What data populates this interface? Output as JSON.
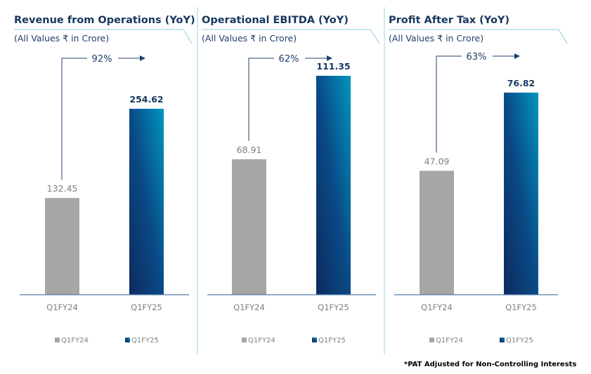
{
  "colors": {
    "prev": "#a6a6a6",
    "curr_dark": "#0d2a5e",
    "curr_light": "#0096c0",
    "title": "#17375e",
    "divider": "#9fd3e3"
  },
  "chart_data": [
    {
      "type": "bar",
      "title": "Revenue from Operations (YoY)",
      "subtitle": "(All Values ₹ in Crore)",
      "categories": [
        "Q1FY24",
        "Q1FY25"
      ],
      "values": [
        132.45,
        254.62
      ],
      "value_labels": [
        "132.45",
        "254.62"
      ],
      "growth_label": "92%",
      "legend": [
        "Q1FY24",
        "Q1FY25"
      ],
      "legend_placement": "bottom",
      "grid": false
    },
    {
      "type": "bar",
      "title": "Operational EBITDA (YoY)",
      "subtitle": "(All Values ₹ in Crore)",
      "categories": [
        "Q1FY24",
        "Q1FY25"
      ],
      "values": [
        68.91,
        111.35
      ],
      "value_labels": [
        "68.91",
        "111.35"
      ],
      "growth_label": "62%",
      "legend": [
        "Q1FY24",
        "Q1FY25"
      ],
      "legend_placement": "bottom",
      "grid": false
    },
    {
      "type": "bar",
      "title": "Profit After Tax (YoY)",
      "subtitle": "(All Values ₹ in Crore)",
      "categories": [
        "Q1FY24",
        "Q1FY25"
      ],
      "values": [
        47.09,
        76.82
      ],
      "value_labels": [
        "47.09",
        "76.82"
      ],
      "growth_label": "63%",
      "legend": [
        "Q1FY24",
        "Q1FY25"
      ],
      "legend_placement": "bottom",
      "grid": false
    }
  ],
  "footnote": "*PAT Adjusted for Non-Controlling Interests"
}
